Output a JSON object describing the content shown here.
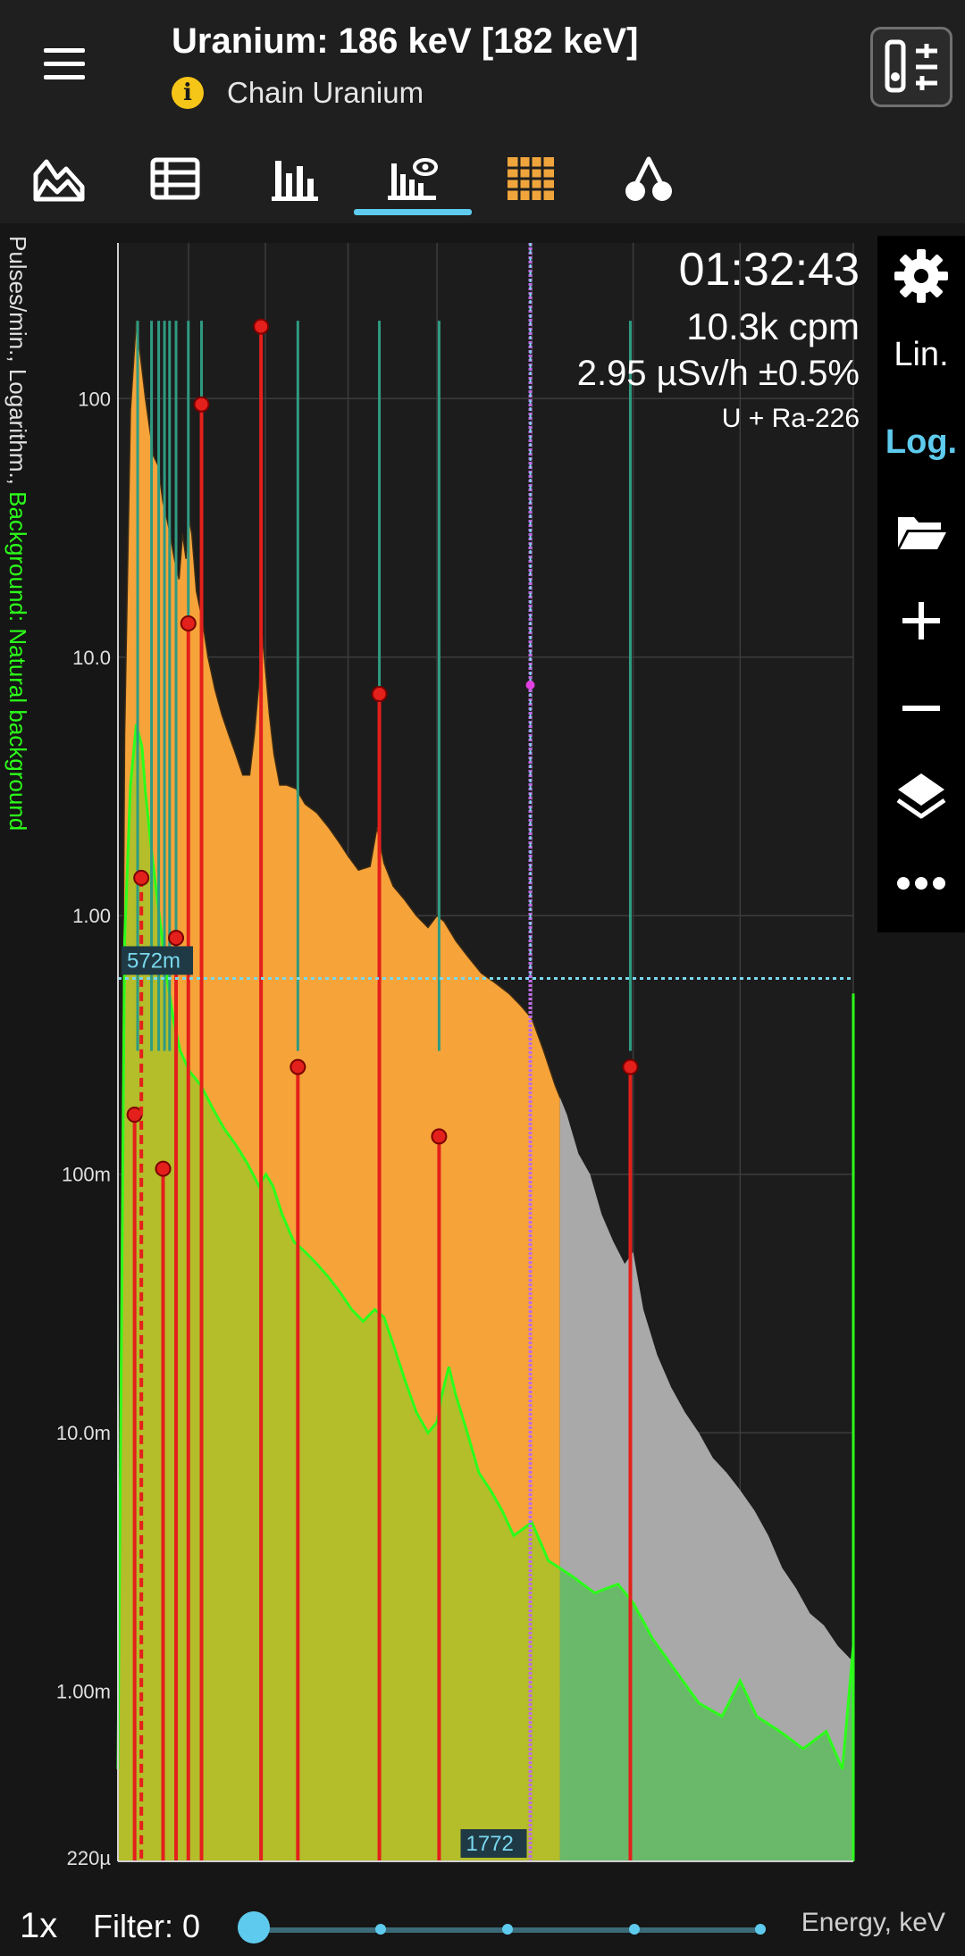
{
  "header": {
    "title": "Uranium: 186 keV [182 keV]",
    "subtitle": "Chain Uranium",
    "info_icon": "i"
  },
  "tabs": [
    {
      "name": "spectrum-area-icon",
      "active": false
    },
    {
      "name": "table-icon",
      "active": false
    },
    {
      "name": "histogram-icon",
      "active": false
    },
    {
      "name": "spectrum-id-icon",
      "active": true
    },
    {
      "name": "grid-icon",
      "active": false
    },
    {
      "name": "cherry-icon",
      "active": false
    }
  ],
  "overlay": {
    "timer": "01:32:43",
    "cpm": "10.3k cpm",
    "dose": "2.95 µSv/h ±0.5%",
    "nuclide": "U + Ra-226"
  },
  "side_toolbar": {
    "lin": "Lin.",
    "log": "Log.",
    "active": "Log."
  },
  "axis_label": {
    "prefix": "Pulses/min., Logarithm., ",
    "background": "Background: Natural background"
  },
  "bottom": {
    "zoom": "1x",
    "filter": "Filter: 0",
    "x_unit": "Energy, keV"
  },
  "colors": {
    "spectrum": "#f6a33a",
    "background_spectrum": "#b4bd2a",
    "background_line": "#2cff1a",
    "peak_marker": "#e3201b",
    "nuclide_line": "#2f9b82",
    "cursor": "#c06ce8",
    "accent": "#5ecbee"
  },
  "chart_data": {
    "type": "area",
    "y_scale": "log",
    "ylim": [
      0.00022,
      400
    ],
    "xlim": [
      -9,
      3167
    ],
    "x_ticks": [
      -9,
      296,
      628,
      985,
      1369,
      1779,
      2216,
      2678,
      3167
    ],
    "y_ticks": [
      {
        "value": 100,
        "label": "100"
      },
      {
        "value": 10,
        "label": "10.0"
      },
      {
        "value": 1,
        "label": "1.00"
      },
      {
        "value": 0.1,
        "label": "100m"
      },
      {
        "value": 0.01,
        "label": "10.0m"
      },
      {
        "value": 0.001,
        "label": "1.00m"
      },
      {
        "value": 0.00022,
        "label": "220µ"
      }
    ],
    "cursor_x": 1772,
    "cursor_x_label": "1772",
    "cursor_y": 0.572,
    "cursor_y_label": "572m",
    "series": [
      {
        "name": "",
        "kind": "spectrum",
        "x": [
          -9,
          20,
          45,
          70,
          95,
          110,
          125,
          145,
          165,
          185,
          210,
          235,
          255,
          270,
          285,
          296,
          310,
          330,
          355,
          380,
          410,
          440,
          470,
          500,
          530,
          560,
          580,
          600,
          615,
          628,
          645,
          665,
          690,
          720,
          760,
          800,
          850,
          900,
          950,
          985,
          1030,
          1080,
          1110,
          1140,
          1180,
          1230,
          1280,
          1330,
          1369,
          1400,
          1450,
          1500,
          1560,
          1620,
          1680,
          1730,
          1779,
          1830,
          1880,
          1930,
          1980,
          2030,
          2080,
          2130,
          2180,
          2216,
          2260,
          2320,
          2380,
          2440,
          2500,
          2560,
          2620,
          2678,
          2740,
          2800,
          2860,
          2920,
          2980,
          3040,
          3100,
          3167
        ],
        "y": [
          0.0005,
          5,
          90,
          200,
          130,
          100,
          80,
          60,
          55,
          40,
          32,
          24,
          20,
          30,
          24,
          35,
          30,
          18,
          14,
          10,
          7.5,
          6,
          5,
          4.2,
          3.5,
          3.5,
          5,
          8,
          12,
          9,
          6,
          4.2,
          3.2,
          3.2,
          3.1,
          2.7,
          2.5,
          2.2,
          1.9,
          1.7,
          1.5,
          1.55,
          2.2,
          1.6,
          1.3,
          1.15,
          1,
          0.9,
          1,
          0.95,
          0.8,
          0.7,
          0.6,
          0.55,
          0.5,
          0.45,
          0.4,
          0.3,
          0.22,
          0.17,
          0.12,
          0.1,
          0.07,
          0.055,
          0.045,
          0.05,
          0.03,
          0.02,
          0.015,
          0.012,
          0.01,
          0.008,
          0.007,
          0.006,
          0.005,
          0.004,
          0.003,
          0.0025,
          0.002,
          0.0018,
          0.0015,
          0.0013
        ]
      },
      {
        "name": "Background: Natural background",
        "kind": "background",
        "x": [
          -9,
          20,
          45,
          70,
          95,
          110,
          130,
          150,
          170,
          200,
          230,
          260,
          300,
          350,
          400,
          450,
          500,
          550,
          600,
          630,
          660,
          700,
          750,
          800,
          850,
          900,
          950,
          1000,
          1050,
          1100,
          1140,
          1180,
          1230,
          1280,
          1330,
          1369,
          1390,
          1420,
          1450,
          1500,
          1550,
          1600,
          1650,
          1700,
          1779,
          1850,
          1950,
          2050,
          2150,
          2216,
          2300,
          2400,
          2500,
          2600,
          2678,
          2750,
          2850,
          2950,
          3050,
          3120,
          3167
        ],
        "y": [
          0.0005,
          0.8,
          3.2,
          5.5,
          4.5,
          3,
          2,
          1.4,
          1,
          0.6,
          0.4,
          0.3,
          0.25,
          0.22,
          0.18,
          0.15,
          0.13,
          0.11,
          0.09,
          0.1,
          0.09,
          0.07,
          0.055,
          0.05,
          0.045,
          0.04,
          0.035,
          0.03,
          0.027,
          0.03,
          0.028,
          0.022,
          0.016,
          0.012,
          0.01,
          0.011,
          0.014,
          0.018,
          0.014,
          0.01,
          0.007,
          0.006,
          0.005,
          0.004,
          0.0045,
          0.0032,
          0.0028,
          0.0024,
          0.0026,
          0.0022,
          0.0016,
          0.0012,
          0.0009,
          0.0008,
          0.0011,
          0.0008,
          0.0007,
          0.0006,
          0.0007,
          0.0005,
          0.0015
        ]
      }
    ],
    "nuclide_lines": [
      76,
      136,
      167,
      192,
      214,
      242,
      295,
      352,
      609,
      768,
      1120,
      1378,
      2204
    ],
    "peak_markers": [
      {
        "x": 63,
        "y": 0.17,
        "dashed": false
      },
      {
        "x": 92,
        "y": 1.4,
        "dashed": true
      },
      {
        "x": 186,
        "y": 0.105,
        "dashed": false
      },
      {
        "x": 242,
        "y": 0.82,
        "dashed": false
      },
      {
        "x": 295,
        "y": 13.5,
        "dashed": false
      },
      {
        "x": 352,
        "y": 95,
        "dashed": false
      },
      {
        "x": 609,
        "y": 190,
        "dashed": false
      },
      {
        "x": 768,
        "y": 0.26,
        "dashed": false
      },
      {
        "x": 1120,
        "y": 7.2,
        "dashed": false
      },
      {
        "x": 1378,
        "y": 0.14,
        "dashed": false
      },
      {
        "x": 2204,
        "y": 0.26,
        "dashed": false
      }
    ]
  }
}
